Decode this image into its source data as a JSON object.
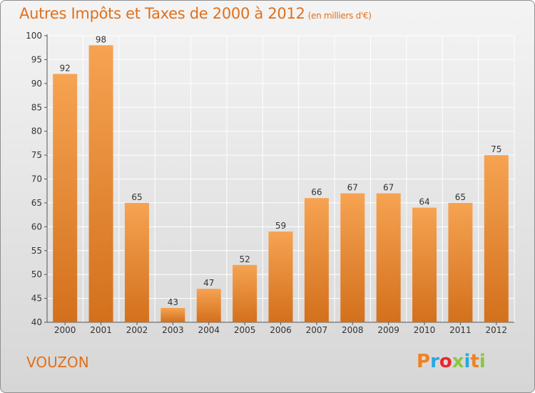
{
  "chart_title": "Autres Impôts et Taxes de 2000 à 2012",
  "chart_unit": "(en milliers d'€)",
  "commune": "VOUZON",
  "logo": {
    "letters": [
      "P",
      "r",
      "o",
      "x",
      "i",
      "t",
      "i"
    ],
    "colors": [
      "#f0821e",
      "#28a8e0",
      "#e9262c",
      "#8cc63f",
      "#28a8e0",
      "#f0821e",
      "#8cc63f"
    ]
  },
  "colors": {
    "bar_light": "#f6a352",
    "bar_dark": "#d3701c",
    "title": "#e0701c"
  },
  "chart_data": {
    "type": "bar",
    "title": "Autres Impôts et Taxes de 2000 à 2012",
    "subtitle": "(en milliers d'€)",
    "categories": [
      "2000",
      "2001",
      "2002",
      "2003",
      "2004",
      "2005",
      "2006",
      "2007",
      "2008",
      "2009",
      "2010",
      "2011",
      "2012"
    ],
    "values": [
      92,
      98,
      65,
      43,
      47,
      52,
      59,
      66,
      67,
      67,
      64,
      65,
      75
    ],
    "ylim": [
      40,
      100
    ],
    "yticks": [
      40,
      45,
      50,
      55,
      60,
      65,
      70,
      75,
      80,
      85,
      90,
      95,
      100
    ],
    "grid": true
  }
}
